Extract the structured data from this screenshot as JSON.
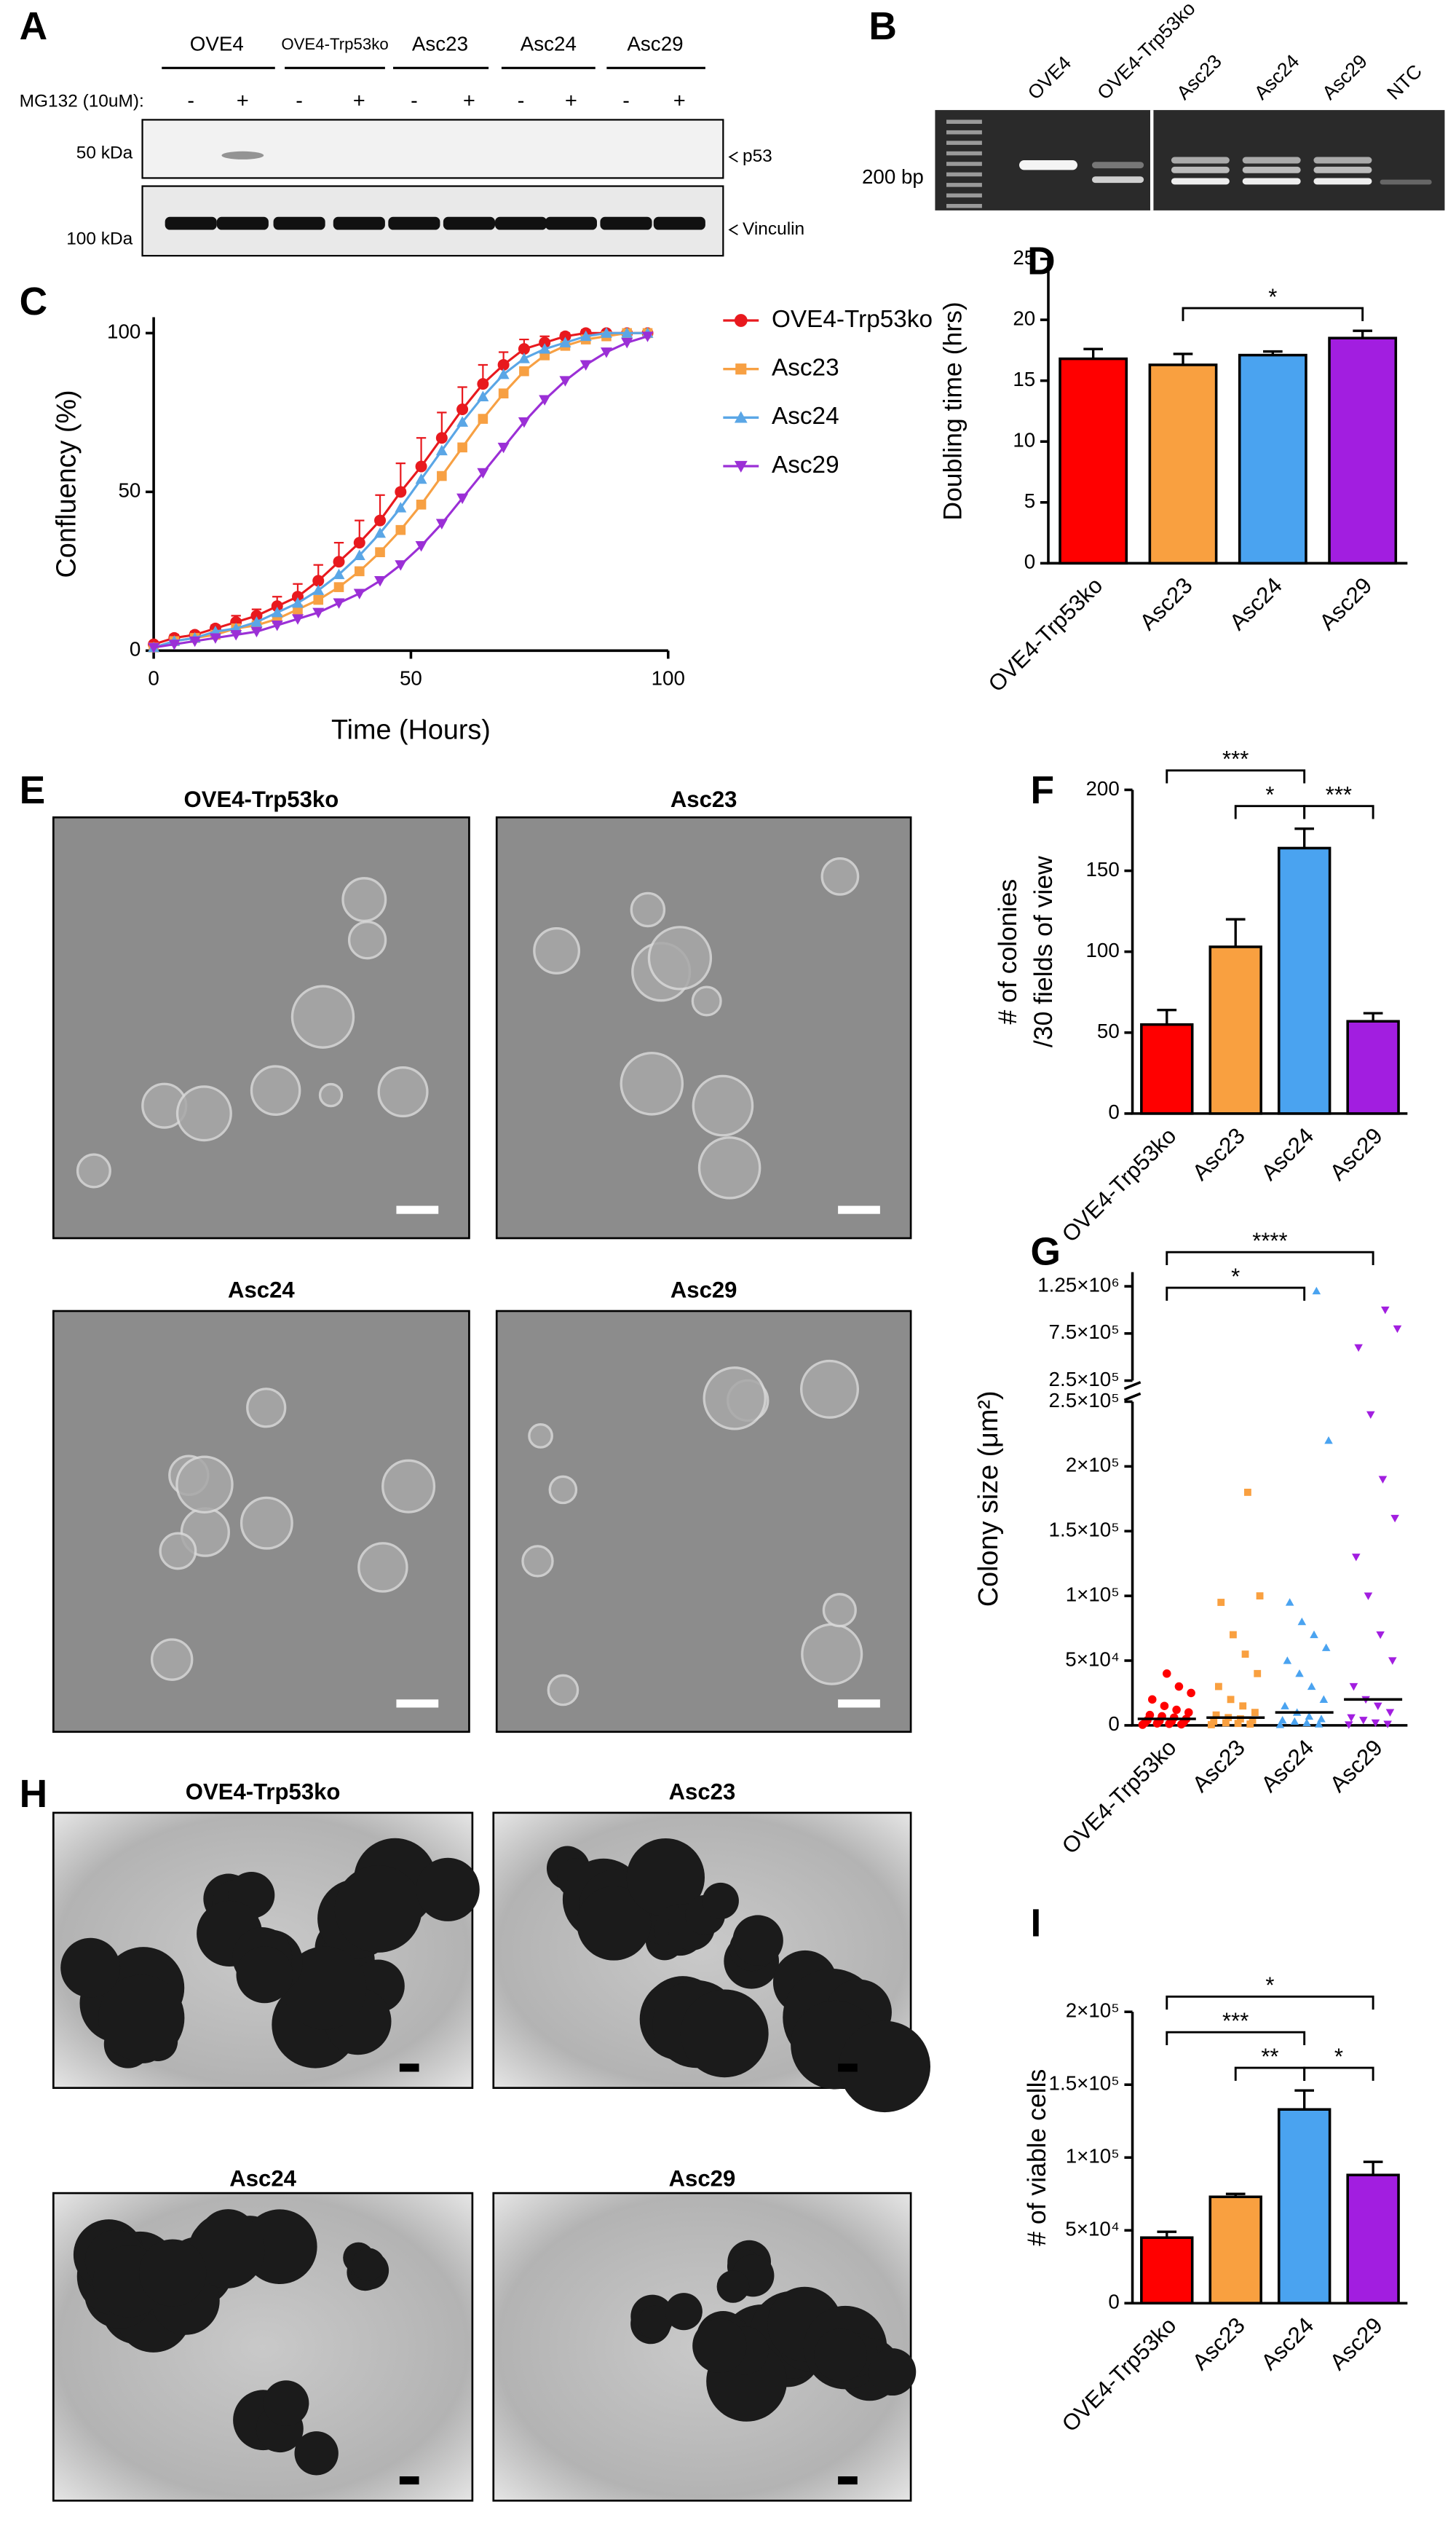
{
  "panels": [
    "A",
    "B",
    "C",
    "D",
    "E",
    "F",
    "G",
    "H",
    "I"
  ],
  "blot": {
    "lanes": [
      "OVE4",
      "OVE4-Trp53ko",
      "Asc23",
      "Asc24",
      "Asc29"
    ],
    "treatment_label": "MG132 (10uM):",
    "treatment": [
      "-",
      "+",
      "-",
      "+",
      "-",
      "+",
      "-",
      "+",
      "-",
      "+"
    ],
    "markers": [
      "50 kDa",
      "100 kDa"
    ],
    "targets": [
      "p53",
      "Vinculin"
    ]
  },
  "gel": {
    "lanes": [
      "OVE4",
      "OVE4-Trp53ko",
      "Asc23",
      "Asc24",
      "Asc29",
      "NTC"
    ],
    "marker": "200 bp"
  },
  "micrographs_E": [
    "OVE4-Trp53ko",
    "Asc23",
    "Asc24",
    "Asc29"
  ],
  "micrographs_H": [
    "OVE4-Trp53ko",
    "Asc23",
    "Asc24",
    "Asc29"
  ],
  "chart_data": [
    {
      "type": "line",
      "x_label": "Time (Hours)",
      "y_label": "Confluency  (%)",
      "x": [
        0,
        4,
        8,
        12,
        16,
        20,
        24,
        28,
        32,
        36,
        40,
        44,
        48,
        52,
        56,
        60,
        64,
        68,
        72,
        76,
        80,
        84,
        88,
        92,
        96
      ],
      "xlim": [
        0,
        100
      ],
      "xticks": [
        0,
        50,
        100
      ],
      "ylim": [
        0,
        105
      ],
      "yticks": [
        0,
        50,
        100
      ],
      "series": [
        {
          "name": "OVE4-Trp53ko",
          "color": "#e8191e",
          "marker": "circle",
          "values": [
            2,
            4,
            5,
            7,
            9,
            11,
            14,
            17,
            22,
            28,
            34,
            41,
            50,
            58,
            67,
            76,
            84,
            90,
            95,
            97,
            99,
            100,
            100,
            100,
            100
          ],
          "errors": [
            0,
            1,
            1,
            1,
            2,
            2,
            3,
            4,
            5,
            6,
            7,
            8,
            9,
            9,
            8,
            7,
            6,
            4,
            3,
            2,
            1,
            1,
            0,
            0,
            0
          ]
        },
        {
          "name": "Asc23",
          "color": "#f7a043",
          "marker": "square",
          "values": [
            1,
            3,
            4,
            5,
            7,
            8,
            10,
            13,
            16,
            20,
            25,
            31,
            38,
            46,
            55,
            64,
            73,
            81,
            88,
            93,
            96,
            98,
            99,
            100,
            100
          ]
        },
        {
          "name": "Asc24",
          "color": "#5aa6e6",
          "marker": "triangle",
          "values": [
            1,
            3,
            4,
            6,
            7,
            9,
            12,
            15,
            19,
            24,
            30,
            37,
            45,
            54,
            63,
            72,
            80,
            87,
            92,
            95,
            97,
            99,
            100,
            100,
            100
          ]
        },
        {
          "name": "Asc29",
          "color": "#9b2fd6",
          "marker": "triangle-down",
          "values": [
            1,
            2,
            3,
            4,
            5,
            6,
            8,
            10,
            12,
            15,
            18,
            22,
            27,
            33,
            40,
            48,
            56,
            64,
            72,
            79,
            85,
            90,
            94,
            97,
            99
          ]
        }
      ]
    },
    {
      "type": "bar",
      "y_label": "Doubling time (hrs)",
      "categories": [
        "OVE4-Trp53ko",
        "Asc23",
        "Asc24",
        "Asc29"
      ],
      "values": [
        16.8,
        16.3,
        17.1,
        18.5
      ],
      "errors": [
        0.8,
        0.9,
        0.3,
        0.6
      ],
      "colors": [
        "#ff0000",
        "#f9a040",
        "#4aa3f0",
        "#a21ee0"
      ],
      "ylim": [
        0,
        25
      ],
      "yticks": [
        0,
        5,
        10,
        15,
        20,
        25
      ],
      "annotations": [
        {
          "text": "*",
          "between": [
            "Asc23",
            "Asc29"
          ]
        }
      ]
    },
    {
      "type": "bar",
      "y_label": [
        "# of colonies",
        "/30 fields of view"
      ],
      "categories": [
        "OVE4-Trp53ko",
        "Asc23",
        "Asc24",
        "Asc29"
      ],
      "values": [
        55,
        103,
        164,
        57
      ],
      "errors": [
        9,
        17,
        12,
        5
      ],
      "colors": [
        "#ff0000",
        "#f9a040",
        "#4aa3f0",
        "#a21ee0"
      ],
      "ylim": [
        0,
        200
      ],
      "yticks": [
        0,
        50,
        100,
        150,
        200
      ],
      "annotations": [
        {
          "text": "***",
          "between": [
            "OVE4-Trp53ko",
            "Asc24"
          ]
        },
        {
          "text": "*",
          "between": [
            "Asc23",
            "Asc24"
          ]
        },
        {
          "text": "***",
          "between": [
            "Asc24",
            "Asc29"
          ]
        }
      ]
    },
    {
      "type": "scatter",
      "y_label": "Colony size  (μm²)",
      "categories": [
        "OVE4-Trp53ko",
        "Asc23",
        "Asc24",
        "Asc29"
      ],
      "colors": [
        "#ff0000",
        "#f9a040",
        "#4aa3f0",
        "#a21ee0"
      ],
      "markers": [
        "circle",
        "square",
        "triangle",
        "triangle-down"
      ],
      "groups": [
        [
          500,
          800,
          1200,
          1500,
          2000,
          2500,
          3000,
          3500,
          4000,
          5000,
          6000,
          7000,
          8000,
          10000,
          12000,
          15000,
          20000,
          25000,
          30000,
          40000
        ],
        [
          500,
          1000,
          1500,
          2000,
          3000,
          4000,
          5000,
          6000,
          8000,
          10000,
          15000,
          20000,
          30000,
          40000,
          55000,
          70000,
          95000,
          100000,
          180000
        ],
        [
          500,
          1000,
          2000,
          3000,
          4000,
          5000,
          7000,
          10000,
          15000,
          20000,
          30000,
          40000,
          50000,
          60000,
          70000,
          80000,
          95000,
          220000,
          1200000
        ],
        [
          500,
          1000,
          2000,
          4000,
          6000,
          10000,
          15000,
          20000,
          30000,
          50000,
          70000,
          100000,
          130000,
          160000,
          190000,
          240000,
          600000,
          800000,
          1000000
        ]
      ],
      "medians": [
        5000,
        6000,
        10000,
        20000
      ],
      "ylim": [
        0,
        250000
      ],
      "yticks": [
        0,
        {
          "value": 50000,
          "label": "5×10⁴"
        },
        {
          "value": 100000,
          "label": "1×10⁵"
        },
        {
          "value": 150000,
          "label": "1.5×10⁵"
        },
        {
          "value": 200000,
          "label": "2×10⁵"
        },
        {
          "value": 250000,
          "label": "2.5×10⁵"
        }
      ],
      "ylim_upper": [
        250000,
        1400000
      ],
      "yticks_upper": [
        {
          "value": 250000,
          "label": "2.5×10⁵"
        },
        {
          "value": 750000,
          "label": "7.5×10⁵"
        },
        {
          "value": 1250000,
          "label": "1.25×10⁶"
        }
      ],
      "annotations": [
        {
          "text": "*",
          "between": [
            "OVE4-Trp53ko",
            "Asc24"
          ]
        },
        {
          "text": "****",
          "between": [
            "OVE4-Trp53ko",
            "Asc29"
          ]
        }
      ]
    },
    {
      "type": "bar",
      "y_label": "# of viable cells",
      "categories": [
        "OVE4-Trp53ko",
        "Asc23",
        "Asc24",
        "Asc29"
      ],
      "values": [
        45000,
        73000,
        133000,
        88000
      ],
      "errors": [
        4000,
        2000,
        13000,
        9000
      ],
      "colors": [
        "#ff0000",
        "#f9a040",
        "#4aa3f0",
        "#a21ee0"
      ],
      "ylim": [
        0,
        200000
      ],
      "yticks": [
        0,
        {
          "value": 50000,
          "label": "5×10⁴"
        },
        {
          "value": 100000,
          "label": "1×10⁵"
        },
        {
          "value": 150000,
          "label": "1.5×10⁵"
        },
        {
          "value": 200000,
          "label": "2×10⁵"
        }
      ],
      "annotations": [
        {
          "text": "**",
          "between": [
            "Asc23",
            "Asc24"
          ]
        },
        {
          "text": "*",
          "between": [
            "Asc24",
            "Asc29"
          ]
        },
        {
          "text": "***",
          "between": [
            "OVE4-Trp53ko",
            "Asc24"
          ]
        },
        {
          "text": "*",
          "between": [
            "OVE4-Trp53ko",
            "Asc29"
          ]
        }
      ]
    }
  ]
}
